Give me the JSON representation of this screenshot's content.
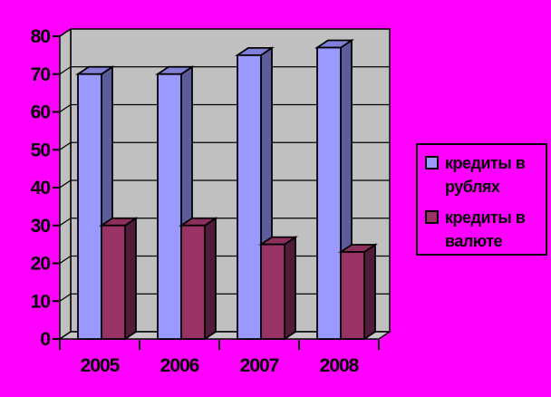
{
  "app": {
    "type": "embedded-chart-image",
    "background_color": "#FF00FF"
  },
  "chart_data": {
    "type": "bar",
    "style": "3d-clustered-column",
    "title": "",
    "xlabel": "",
    "ylabel": "",
    "categories": [
      "2005",
      "2006",
      "2007",
      "2008"
    ],
    "series": [
      {
        "name": "кредиты в рублях",
        "values": [
          70,
          70,
          75,
          77
        ],
        "color": "#9999FF",
        "color_top": "#8080D8",
        "color_side": "#5C5C9C"
      },
      {
        "name": "кредиты в валюте",
        "values": [
          30,
          30,
          25,
          23
        ],
        "color": "#993366",
        "color_top": "#8C2F5C",
        "color_side": "#4F1B38"
      }
    ],
    "ylim": [
      0,
      80
    ],
    "yticks": [
      0,
      10,
      20,
      30,
      40,
      50,
      60,
      70,
      80
    ],
    "grid": true,
    "legend_position": "right",
    "wall_color": "#C0C0C0",
    "floor_color": "#C8C8C8",
    "gridline_color": "#000000",
    "outline_color": "#000000",
    "axis_text_color": "#000000"
  },
  "legend": {
    "background_color": "#FF00FF",
    "border_color": "#000000",
    "items": [
      {
        "label": "кредиты в рублях",
        "swatch_color": "#9999FF"
      },
      {
        "label": "кредиты в валюте",
        "swatch_color": "#993366"
      }
    ]
  }
}
